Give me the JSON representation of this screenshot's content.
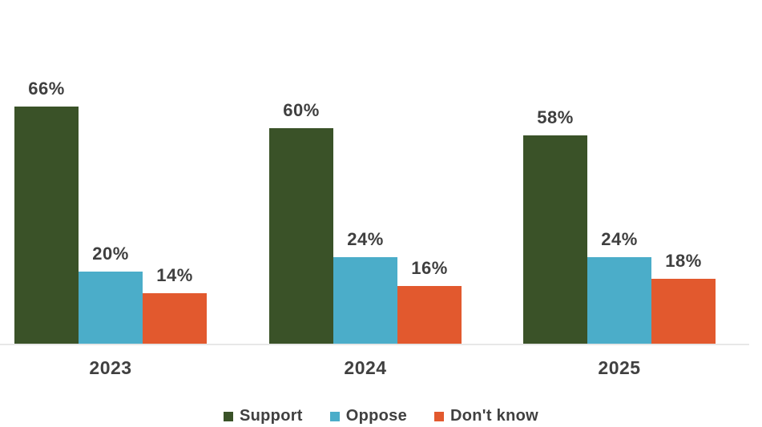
{
  "chart_data": {
    "type": "bar",
    "title": "",
    "xlabel": "",
    "ylabel": "",
    "categories": [
      "2023",
      "2024",
      "2025"
    ],
    "series": [
      {
        "name": "Support",
        "color": "#3a5228",
        "values": [
          66,
          60,
          58
        ]
      },
      {
        "name": "Oppose",
        "color": "#4badc9",
        "values": [
          20,
          24,
          24
        ]
      },
      {
        "name": "Don't know",
        "color": "#e2592e",
        "values": [
          14,
          16,
          18
        ]
      }
    ],
    "value_suffix": "%",
    "ylim": [
      0,
      70
    ],
    "grid": false,
    "legend_position": "bottom",
    "data_label_color": "#3f3f3f",
    "axis_label_color": "#404040",
    "axis_line_color": "#e7e7e7"
  }
}
